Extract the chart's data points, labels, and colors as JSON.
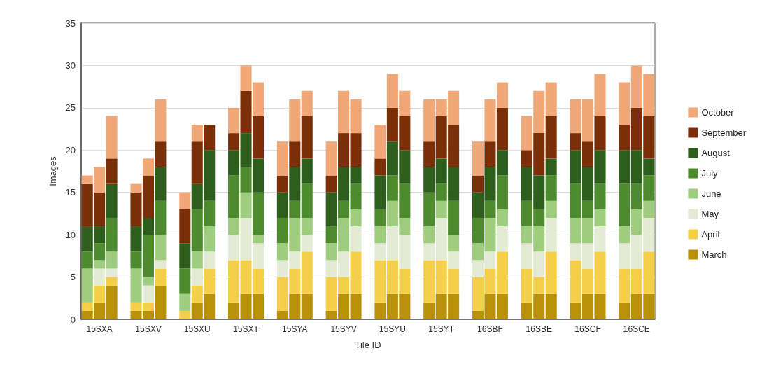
{
  "chart_data": {
    "type": "bar",
    "stacked": true,
    "xlabel": "Tile ID",
    "ylabel": "Images",
    "ylim": [
      0,
      35
    ],
    "yticks": [
      0,
      5,
      10,
      15,
      20,
      25,
      30,
      35
    ],
    "grid": "y",
    "legend": "right",
    "categories": [
      null,
      "15SXA",
      null,
      null,
      null,
      "15SXV",
      null,
      null,
      null,
      "15SXU",
      null,
      null,
      null,
      "15SXT",
      null,
      null,
      null,
      "15SYA",
      null,
      null,
      null,
      "15SYV",
      null,
      null,
      null,
      "15SYU",
      null,
      null,
      null,
      "15SYT",
      null,
      null,
      null,
      "16SBF",
      null,
      null,
      null,
      "16SBE",
      null,
      null,
      null,
      "16SCF",
      null,
      null,
      null,
      "16SCE",
      null
    ],
    "series": [
      {
        "name": "March",
        "color": "#b8900a",
        "values": [
          1,
          2,
          4,
          null,
          1,
          1,
          4,
          null,
          0,
          2,
          3,
          null,
          2,
          3,
          3,
          null,
          1,
          3,
          3,
          null,
          1,
          3,
          3,
          null,
          2,
          3,
          3,
          null,
          2,
          3,
          3,
          null,
          1,
          3,
          3,
          null,
          2,
          3,
          3,
          null,
          2,
          3,
          3,
          null,
          2,
          3,
          3
        ]
      },
      {
        "name": "April",
        "color": "#f5cf4a",
        "values": [
          1,
          2,
          1,
          null,
          1,
          1,
          2,
          null,
          1,
          2,
          3,
          null,
          5,
          4,
          3,
          null,
          4,
          3,
          5,
          null,
          4,
          2,
          5,
          null,
          5,
          4,
          3,
          null,
          5,
          4,
          3,
          null,
          4,
          3,
          5,
          null,
          4,
          2,
          5,
          null,
          5,
          3,
          5,
          null,
          4,
          3,
          5
        ]
      },
      {
        "name": "May",
        "color": "#e3ebd5",
        "values": [
          0,
          2,
          1,
          null,
          0,
          2,
          1,
          null,
          0,
          2,
          2,
          null,
          3,
          5,
          3,
          null,
          2,
          2,
          2,
          null,
          2,
          3,
          3,
          null,
          2,
          4,
          4,
          null,
          2,
          5,
          2,
          null,
          2,
          2,
          3,
          null,
          3,
          3,
          4,
          null,
          2,
          3,
          3,
          null,
          3,
          4,
          4
        ]
      },
      {
        "name": "June",
        "color": "#9fcd80",
        "values": [
          4,
          1,
          2,
          null,
          4,
          1,
          3,
          null,
          2,
          2,
          3,
          null,
          2,
          3,
          1,
          null,
          2,
          4,
          2,
          null,
          2,
          4,
          2,
          null,
          2,
          3,
          2,
          null,
          2,
          2,
          2,
          null,
          2,
          4,
          2,
          null,
          2,
          3,
          2,
          null,
          3,
          3,
          2,
          null,
          2,
          3,
          2
        ]
      },
      {
        "name": "July",
        "color": "#4e8a2e",
        "values": [
          2,
          2,
          4,
          null,
          2,
          5,
          4,
          null,
          3,
          5,
          3,
          null,
          5,
          3,
          5,
          null,
          3,
          2,
          4,
          null,
          2,
          2,
          3,
          null,
          2,
          3,
          4,
          null,
          4,
          2,
          4,
          null,
          3,
          2,
          4,
          null,
          3,
          2,
          3,
          null,
          4,
          2,
          3,
          null,
          5,
          3,
          3
        ]
      },
      {
        "name": "August",
        "color": "#2d5e1c",
        "values": [
          3,
          2,
          4,
          null,
          3,
          2,
          4,
          null,
          3,
          3,
          6,
          null,
          3,
          4,
          4,
          null,
          3,
          4,
          3,
          null,
          4,
          4,
          2,
          null,
          4,
          4,
          4,
          null,
          3,
          3,
          4,
          null,
          3,
          4,
          3,
          null,
          4,
          4,
          2,
          null,
          4,
          4,
          4,
          null,
          4,
          4,
          2
        ]
      },
      {
        "name": "September",
        "color": "#7a2f08",
        "values": [
          5,
          4,
          3,
          null,
          4,
          5,
          3,
          null,
          4,
          5,
          3,
          null,
          2,
          5,
          5,
          null,
          2,
          3,
          5,
          null,
          2,
          4,
          4,
          null,
          2,
          4,
          4,
          null,
          3,
          5,
          5,
          null,
          2,
          3,
          5,
          null,
          2,
          5,
          5,
          null,
          2,
          3,
          4,
          null,
          3,
          5,
          5
        ]
      },
      {
        "name": "October",
        "color": "#f0a878",
        "values": [
          1,
          3,
          5,
          null,
          1,
          2,
          5,
          null,
          2,
          2,
          0,
          null,
          3,
          3,
          4,
          null,
          4,
          5,
          3,
          null,
          4,
          5,
          4,
          null,
          4,
          4,
          3,
          null,
          5,
          2,
          4,
          null,
          4,
          5,
          3,
          null,
          4,
          5,
          4,
          null,
          4,
          5,
          5,
          null,
          5,
          5,
          5
        ]
      }
    ]
  }
}
